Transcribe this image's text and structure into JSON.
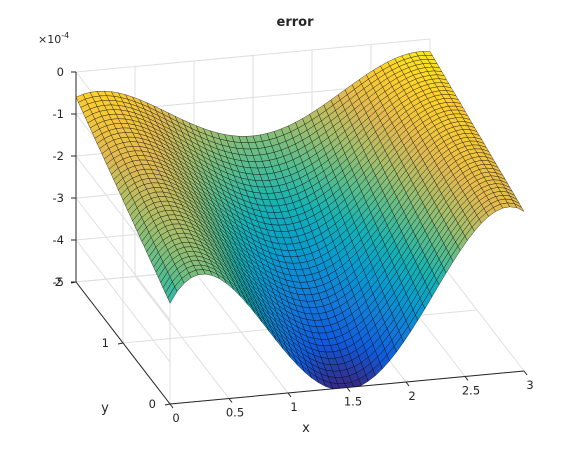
{
  "chart_data": {
    "type": "surface",
    "title": "error",
    "xlabel": "x",
    "ylabel": "y",
    "zlabel": "",
    "xlim": [
      0,
      3
    ],
    "ylim": [
      0,
      2
    ],
    "zlim": [
      -0.0005,
      0
    ],
    "x_ticks": [
      "0",
      "0.5",
      "1",
      "1.5",
      "2",
      "2.5",
      "3"
    ],
    "y_ticks": [
      "0",
      "1",
      "2"
    ],
    "z_ticks": [
      "-5",
      "-4",
      "-3",
      "-2",
      "-1",
      "0"
    ],
    "z_exponent": {
      "base": "×10",
      "power": "-4"
    },
    "grid": true,
    "colormap": "parula",
    "grid_resolution": {
      "nx": 50,
      "ny": 40
    },
    "surface_function": "z = -5e-4 * sin(pi*x/3) * (1 - 0.3*cos(pi*(y-1)))^... (approximate)",
    "corner_values": {
      "x0_y0": -0.00026,
      "x3_y0": -0.00012,
      "x0_y2": -6e-05,
      "x3_y2": -3e-05
    },
    "minimum": {
      "x": 1.5,
      "y": 0,
      "z": -0.0005
    }
  },
  "colors": {
    "background": "#ffffff",
    "axis": "#262626",
    "grid": "#dfdfdf",
    "mesh": "#000000"
  }
}
